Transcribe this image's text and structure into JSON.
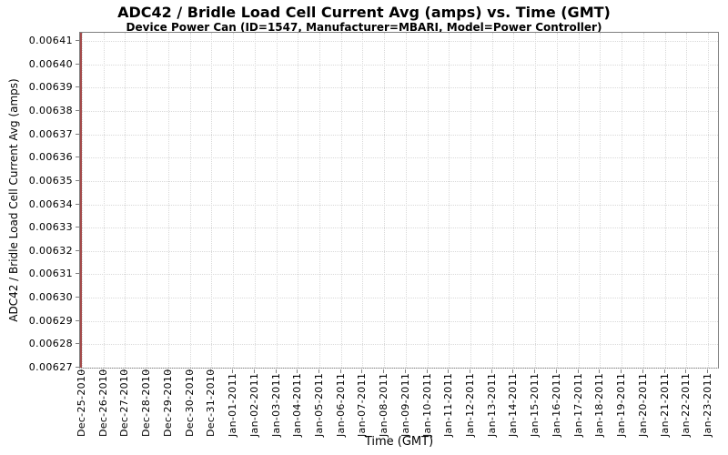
{
  "chart_data": {
    "type": "line",
    "title": "ADC42 / Bridle Load Cell Current Avg (amps) vs. Time (GMT)",
    "subtitle": "Device Power Can (ID=1547, Manufacturer=MBARI, Model=Power Controller)",
    "xlabel": "Time (GMT)",
    "ylabel": "ADC42 / Bridle Load Cell Current Avg (amps)",
    "x_tick_labels": [
      "Dec-25-2010",
      "Dec-26-2010",
      "Dec-27-2010",
      "Dec-28-2010",
      "Dec-29-2010",
      "Dec-30-2010",
      "Dec-31-2010",
      "Jan-01-2011",
      "Jan-02-2011",
      "Jan-03-2011",
      "Jan-04-2011",
      "Jan-05-2011",
      "Jan-06-2011",
      "Jan-07-2011",
      "Jan-08-2011",
      "Jan-09-2011",
      "Jan-10-2011",
      "Jan-11-2011",
      "Jan-12-2011",
      "Jan-13-2011",
      "Jan-14-2011",
      "Jan-15-2011",
      "Jan-16-2011",
      "Jan-17-2011",
      "Jan-18-2011",
      "Jan-19-2011",
      "Jan-20-2011",
      "Jan-21-2011",
      "Jan-22-2011",
      "Jan-23-2011"
    ],
    "y_tick_labels": [
      "0.00641",
      "0.00640",
      "0.00639",
      "0.00638",
      "0.00637",
      "0.00636",
      "0.00635",
      "0.00634",
      "0.00633",
      "0.00632",
      "0.00631",
      "0.00630",
      "0.00629",
      "0.00628",
      "0.00627"
    ],
    "ylim": [
      0.006266,
      0.006414
    ],
    "xlim": [
      "Dec-25-2010",
      "Jan-23-2011"
    ],
    "grid": true,
    "legend": "none",
    "series": [
      {
        "name": "Bridle Load Cell Current Avg",
        "color": "#a34a4a",
        "shape": "vertical-spike",
        "points": [
          {
            "x": "Dec-25-2010",
            "y_min": 0.006266,
            "y_max": 0.006414
          }
        ],
        "note": "All visible data occurs at Dec-25-2010 as a vertical red line spanning the full y-range; no data plotted afterward."
      }
    ],
    "colors": {
      "grid": "#d9d9d9",
      "plot_border": "#808080",
      "axis_tick": "#808080",
      "text": "#000000",
      "background": "#ffffff"
    }
  }
}
